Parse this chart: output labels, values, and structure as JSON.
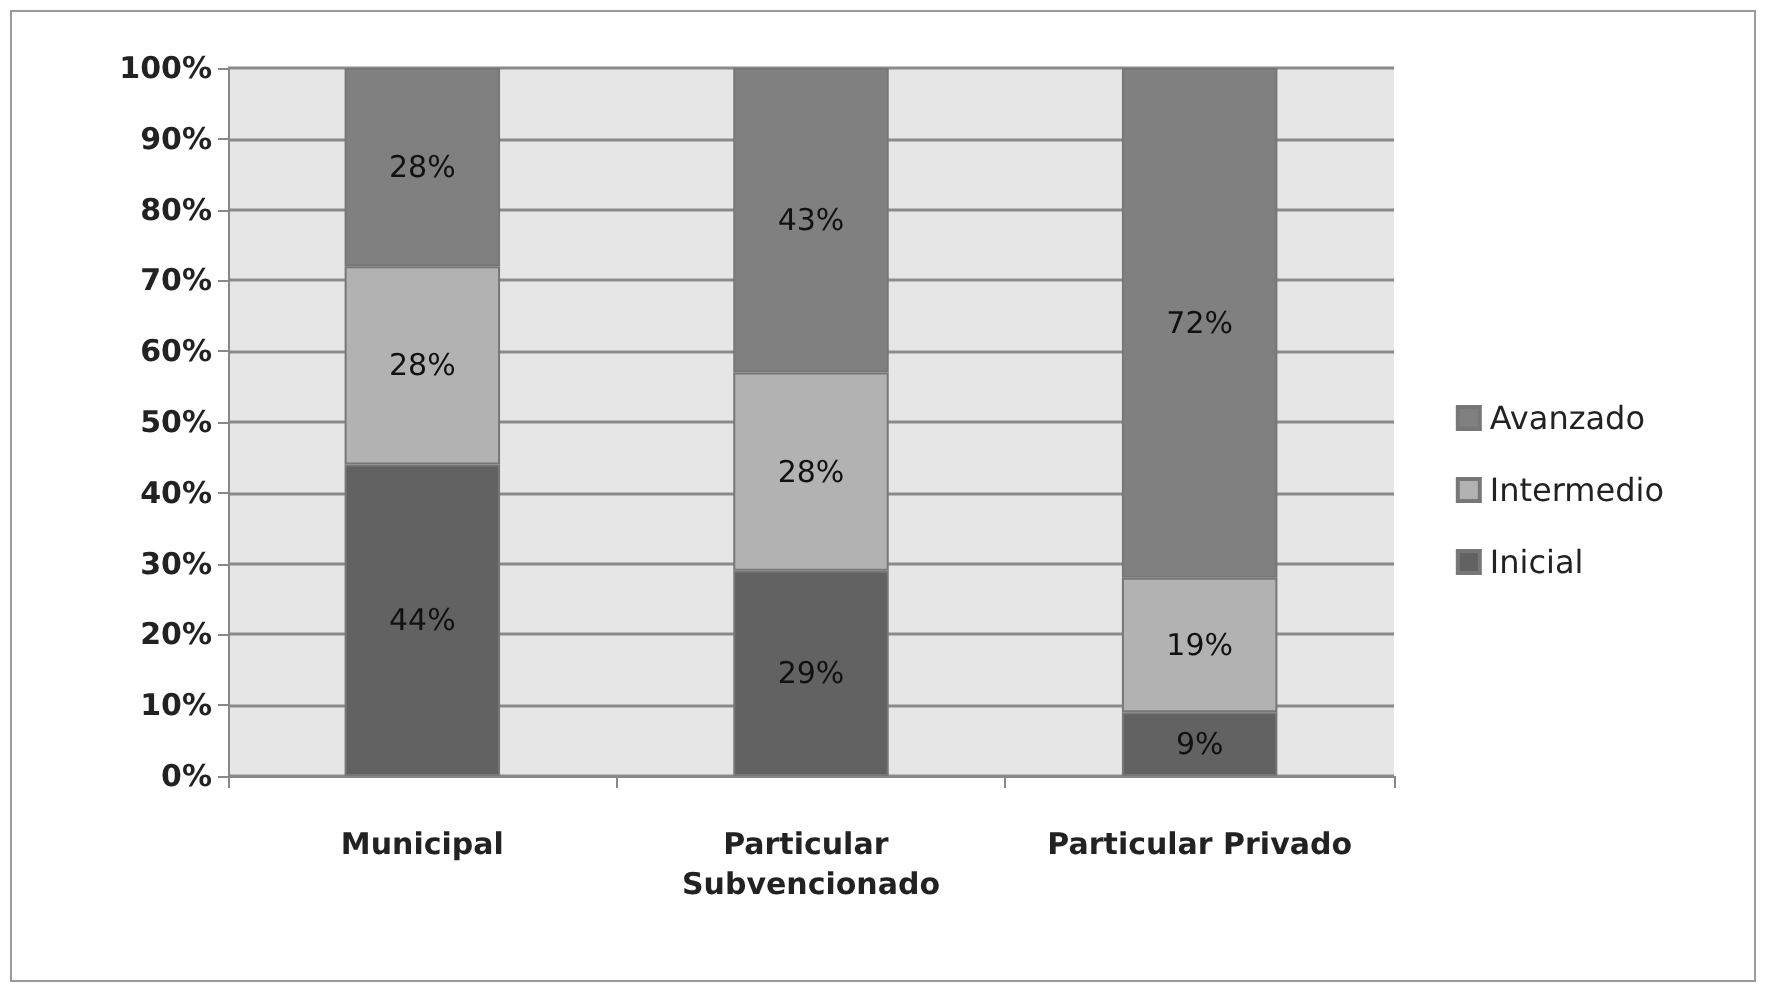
{
  "chart_data": {
    "type": "bar",
    "stacked": true,
    "categories": [
      "Municipal",
      "Particular Subvencionado",
      "Particular Privado"
    ],
    "series": [
      {
        "name": "Inicial",
        "color": "#626262",
        "values": [
          44,
          29,
          9
        ],
        "value_labels": [
          "44%",
          "29%",
          "9%"
        ]
      },
      {
        "name": "Intermedio",
        "color": "#b2b2b2",
        "values": [
          28,
          28,
          19
        ],
        "value_labels": [
          "28%",
          "28%",
          "19%"
        ]
      },
      {
        "name": "Avanzado",
        "color": "#808080",
        "values": [
          28,
          43,
          72
        ],
        "value_labels": [
          "28%",
          "43%",
          "72%"
        ]
      }
    ],
    "ylim": [
      0,
      100
    ],
    "yticks": [
      {
        "value": 0,
        "label": "0%"
      },
      {
        "value": 10,
        "label": "10%"
      },
      {
        "value": 20,
        "label": "20%"
      },
      {
        "value": 30,
        "label": "30%"
      },
      {
        "value": 40,
        "label": "40%"
      },
      {
        "value": 50,
        "label": "50%"
      },
      {
        "value": 60,
        "label": "60%"
      },
      {
        "value": 70,
        "label": "70%"
      },
      {
        "value": 80,
        "label": "80%"
      },
      {
        "value": 90,
        "label": "90%"
      },
      {
        "value": 100,
        "label": "100%"
      }
    ],
    "grid": "y",
    "legend": "right"
  }
}
